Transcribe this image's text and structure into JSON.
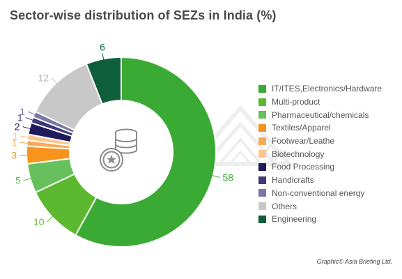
{
  "title": "Sector-wise distribution of SEZs in India (%)",
  "credit": "Graphic© Asia Briefing Ltd.",
  "colors": {
    "label_default": "#555555",
    "center_icon": "#8a8a8a",
    "watermark": "#ececec"
  },
  "icons": {
    "center": "coins-stack-icon",
    "watermark": "triangle-logo-watermark"
  },
  "chart_data": {
    "type": "pie",
    "variant": "donut",
    "title": "Sector-wise distribution of SEZs in India (%)",
    "legend_position": "right",
    "series": [
      {
        "name": "IT/ITES,Electronics/Hardware",
        "value": 58,
        "label": "58",
        "color": "#3aaa35"
      },
      {
        "name": "Multi-product",
        "value": 10,
        "label": "10",
        "color": "#5cb82e"
      },
      {
        "name": "Pharmaceutical/chemicals",
        "value": 5,
        "label": "5",
        "color": "#66c05c"
      },
      {
        "name": "Textiles/Apparel",
        "value": 3,
        "label": "3",
        "color": "#f7941d"
      },
      {
        "name": "Footwear/Leathe",
        "value": 1,
        "label": "1",
        "color": "#f9aa55"
      },
      {
        "name": "Biotechnology",
        "value": 1,
        "label": "1",
        "color": "#fbc58d"
      },
      {
        "name": "Food Processing",
        "value": 2,
        "label": "2",
        "color": "#1f1a5c"
      },
      {
        "name": "Handicrafts",
        "value": 1,
        "label": "1",
        "color": "#3d3a78"
      },
      {
        "name": "Non-conventional energy",
        "value": 1,
        "label": "1",
        "color": "#7b76a8"
      },
      {
        "name": "Others",
        "value": 12,
        "label": "12",
        "color": "#c8c8c8"
      },
      {
        "name": "Engineering",
        "value": 6,
        "label": "6",
        "color": "#0e5e3b"
      }
    ]
  }
}
